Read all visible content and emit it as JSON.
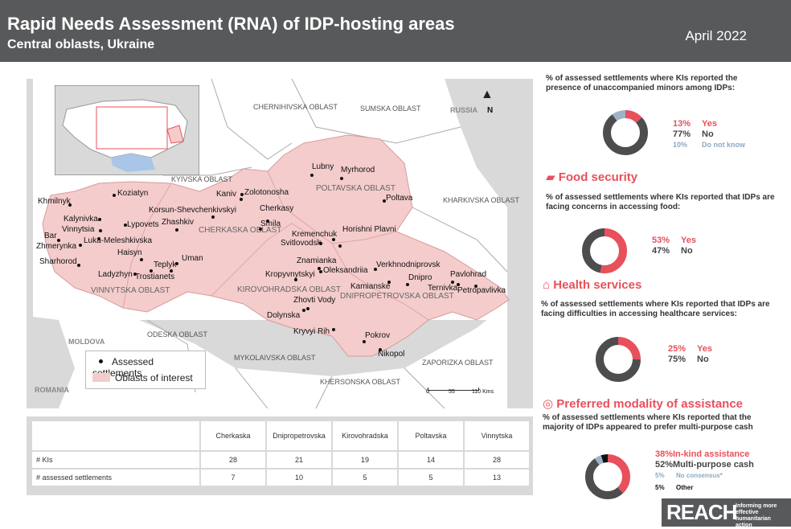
{
  "header": {
    "title": "Rapid Needs Assessment (RNA) of IDP-hosting areas",
    "subtitle": "Central oblasts, Ukraine",
    "date": "April 2022"
  },
  "map": {
    "countries": [
      "RUSSIA",
      "MOLDOVA",
      "ROMANIA"
    ],
    "neighbour_oblasts": [
      "CHERNIHIVSKA OBLAST",
      "SUMSKA OBLAST",
      "KYIVSKA OBLAST",
      "KHARKIVSKA OBLAST",
      "ODESKA OBLAST",
      "MYKOLAIVSKA OBLAST",
      "KHERSONSKA OBLAST",
      "ZAPORIZKA OBLAST"
    ],
    "oblasts_of_interest": [
      "CHERKASKA OBLAST",
      "POLTAVSKA OBLAST",
      "VINNYTSKA OBLAST",
      "KIROVOHRADSKA OBLAST",
      "DNIPROPETROVSKA OBLAST"
    ],
    "settlements": [
      "Koziatyn",
      "Khmilnyk",
      "Kalynivka",
      "Vinnytsia",
      "Bar",
      "Zhmerynka",
      "Luka-Meleshkivska",
      "Lypovets",
      "Haisyn",
      "Sharhorod",
      "Ladyzhyn",
      "Trostianets",
      "Teplyk",
      "Uman",
      "Zhashkiv",
      "Korsun-Shevchenkivskyi",
      "Kaniv",
      "Zolotonosha",
      "Cherkasy",
      "Smila",
      "Lubny",
      "Myrhorod",
      "Poltava",
      "Kremenchuk",
      "Horishni Plavni",
      "Svitlovodsk",
      "Znamianka",
      "Oleksandriia",
      "Kropyvnytskyi",
      "Verkhnodniprovsk",
      "Kamianske",
      "Dnipro",
      "Pavlohrad",
      "Ternivka",
      "Petropavlivka",
      "Zhovti Vody",
      "Dolynska",
      "Kryvyi Rih",
      "Pokrov",
      "Nikopol"
    ],
    "compass": "N",
    "scale": {
      "ticks": [
        "0",
        "55",
        "110 Kms"
      ]
    },
    "legend": {
      "assessed": "Assessed settlements",
      "oblasts": "Oblasts of interest"
    }
  },
  "table": {
    "columns": [
      "Cherkaska",
      "Dnipropetrovska",
      "Kirovohradska",
      "Poltavska",
      "Vinnytska"
    ],
    "rows": [
      {
        "label": "# KIs",
        "values": [
          "28",
          "21",
          "19",
          "14",
          "28"
        ]
      },
      {
        "label": "# assessed settlements",
        "values": [
          "7",
          "10",
          "5",
          "5",
          "13"
        ]
      }
    ]
  },
  "minors": {
    "question": "% of assessed settlements where KIs reported the presence of unaccompanied minors among IDPs:",
    "items": [
      {
        "pct": "13%",
        "label": "Yes",
        "value": 13,
        "color": "#e8505b"
      },
      {
        "pct": "77%",
        "label": "No",
        "value": 77,
        "color": "#4d4d4f"
      },
      {
        "pct": "10%",
        "label": "Do not know",
        "value": 10,
        "color": "#9fb3c8"
      }
    ]
  },
  "food": {
    "title": "Food security",
    "icon": "food-bowl-icon",
    "question": "% of assessed settlements where KIs reported that IDPs are facing concerns in accessing food:",
    "items": [
      {
        "pct": "53%",
        "label": "Yes",
        "value": 53,
        "color": "#e8505b"
      },
      {
        "pct": "47%",
        "label": "No",
        "value": 47,
        "color": "#4d4d4f"
      }
    ]
  },
  "health": {
    "title": "Health services",
    "icon": "health-house-icon",
    "question": "% of assessed settlements where KIs reported that IDPs are facing difficulties in accessing healthcare services:",
    "items": [
      {
        "pct": "25%",
        "label": "Yes",
        "value": 25,
        "color": "#e8505b"
      },
      {
        "pct": "75%",
        "label": "No",
        "value": 75,
        "color": "#4d4d4f"
      }
    ]
  },
  "modality": {
    "title": "Preferred modality of assistance",
    "icon": "target-icon",
    "question": "% of assessed settlements where KIs reported that the majority of IDPs appeared to prefer multi-purpose cash",
    "items": [
      {
        "pct": "38%",
        "label": "In-kind assistance",
        "value": 38,
        "color": "#e8505b"
      },
      {
        "pct": "52%",
        "label": "Multi-purpose cash",
        "value": 52,
        "color": "#4d4d4f"
      },
      {
        "pct": "5%",
        "label": "No consensus*",
        "value": 5,
        "color": "#9fb3c8"
      },
      {
        "pct": "5%",
        "label": "Other",
        "value": 5,
        "color": "#111111"
      }
    ]
  },
  "logo": {
    "name": "REACH",
    "tagline": "Informing more effective humanitarian action"
  }
}
